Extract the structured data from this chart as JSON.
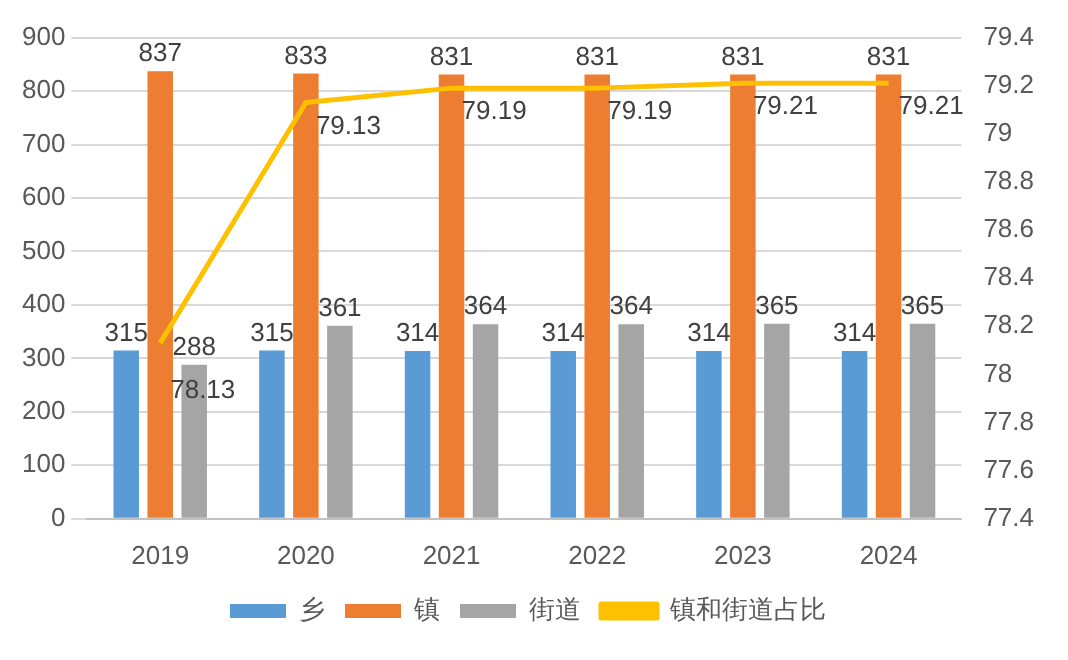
{
  "chart_data": {
    "type": "bar",
    "categories": [
      "2019",
      "2020",
      "2021",
      "2022",
      "2023",
      "2024"
    ],
    "series": [
      {
        "name": "乡",
        "color": "#5b9bd5",
        "values": [
          315,
          315,
          314,
          314,
          314,
          314
        ]
      },
      {
        "name": "镇",
        "color": "#ed7d31",
        "values": [
          837,
          833,
          831,
          831,
          831,
          831
        ]
      },
      {
        "name": "街道",
        "color": "#a5a5a5",
        "values": [
          288,
          361,
          364,
          364,
          365,
          365
        ]
      },
      {
        "name": "镇和街道占比",
        "type": "line",
        "axis": "y2",
        "color": "#ffc000",
        "values": [
          78.13,
          79.13,
          79.19,
          79.19,
          79.21,
          79.21
        ]
      }
    ],
    "ylim": [
      0,
      900
    ],
    "yticks": [
      0,
      100,
      200,
      300,
      400,
      500,
      600,
      700,
      800,
      900
    ],
    "y2lim": [
      77.4,
      79.4
    ],
    "y2ticks": [
      77.4,
      77.6,
      77.8,
      78,
      78.2,
      78.4,
      78.6,
      78.8,
      79,
      79.2,
      79.4
    ],
    "grid": "y",
    "legend": "bottom",
    "data_labels": true,
    "marker": "none"
  }
}
